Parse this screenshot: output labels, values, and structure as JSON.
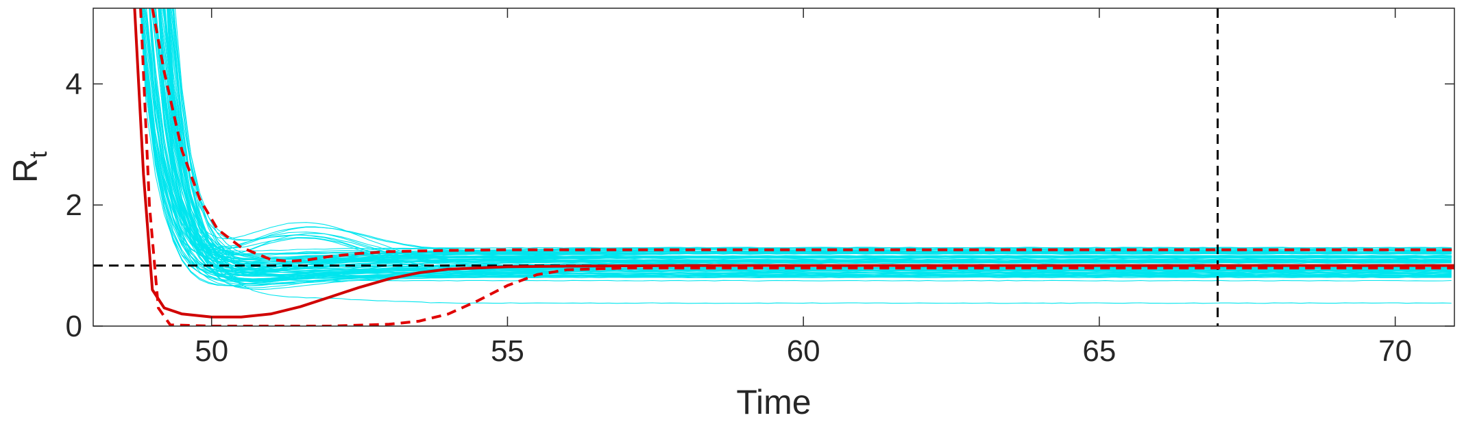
{
  "chart_data": {
    "type": "line",
    "title": "",
    "xlabel": "Time",
    "ylabel": "R",
    "ylabel_subscript": "t",
    "xlim": [
      48,
      71
    ],
    "ylim": [
      0,
      5.25
    ],
    "xticks": [
      50,
      55,
      60,
      65,
      70
    ],
    "yticks": [
      0,
      2,
      4
    ],
    "grid": false,
    "legend": "none",
    "reference_lines": [
      {
        "orientation": "horizontal",
        "value": 1,
        "style": "dashed",
        "color": "#000000"
      },
      {
        "orientation": "vertical",
        "value": 67,
        "style": "dashed",
        "color": "#000000"
      }
    ],
    "series": [
      {
        "style": "solid",
        "color": "#d00000",
        "x": [
          48.7,
          48.85,
          49.0,
          49.2,
          49.5,
          50.0,
          50.5,
          51.0,
          51.5,
          52.0,
          52.5,
          53.0,
          53.5,
          54.0,
          55.0,
          56.0,
          58.0,
          60.0,
          62.0,
          65.0,
          67.0,
          69.0,
          71.0
        ],
        "y": [
          5.25,
          2.5,
          0.6,
          0.3,
          0.2,
          0.15,
          0.15,
          0.2,
          0.32,
          0.48,
          0.64,
          0.78,
          0.88,
          0.94,
          0.98,
          0.99,
          1.0,
          1.0,
          1.0,
          1.0,
          1.0,
          1.0,
          1.0
        ]
      },
      {
        "style": "dashed",
        "color": "#e00000",
        "x": [
          49.0,
          49.2,
          49.5,
          49.8,
          50.1,
          50.5,
          51.0,
          51.3,
          51.6,
          52.0,
          52.5,
          53.0,
          54.0,
          55.0,
          56.0,
          58.0,
          62.0,
          67.0,
          71.0
        ],
        "y": [
          5.25,
          4.2,
          2.9,
          2.1,
          1.6,
          1.3,
          1.1,
          1.07,
          1.09,
          1.15,
          1.2,
          1.23,
          1.25,
          1.26,
          1.26,
          1.26,
          1.26,
          1.26,
          1.26
        ]
      },
      {
        "style": "dashed",
        "color": "#e00000",
        "x": [
          48.8,
          48.95,
          49.1,
          49.3,
          50.0,
          51.0,
          52.0,
          53.0,
          53.5,
          54.0,
          54.5,
          55.0,
          55.5,
          56.0,
          57.0,
          60.0,
          65.0,
          71.0
        ],
        "y": [
          5.25,
          2.0,
          0.3,
          0.02,
          0.0,
          0.0,
          0.0,
          0.03,
          0.08,
          0.2,
          0.42,
          0.67,
          0.85,
          0.93,
          0.96,
          0.96,
          0.96,
          0.96
        ]
      }
    ],
    "ensemble": {
      "color": "#00e5ee",
      "count": 90,
      "style": "thin solid",
      "final_range": [
        0.45,
        1.3
      ]
    }
  }
}
